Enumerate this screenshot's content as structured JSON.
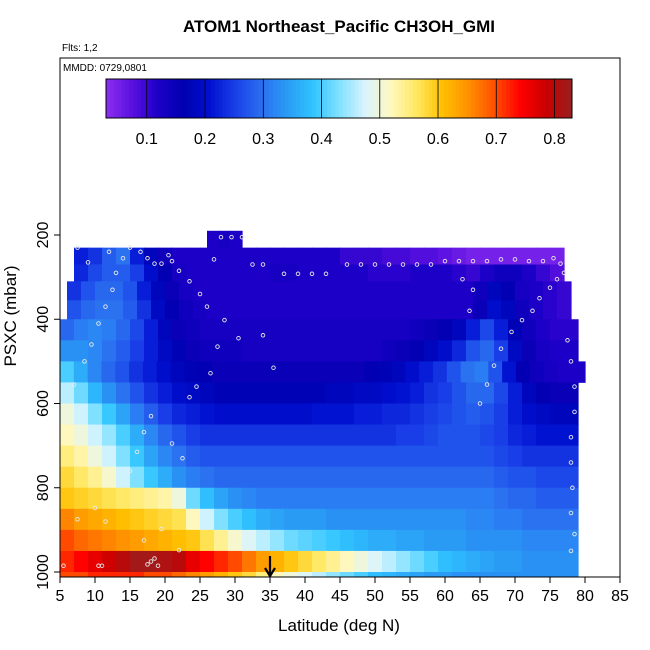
{
  "chart_data": {
    "type": "heatmap",
    "title": "ATOM1 Northeast_Pacific CH3OH_GMI",
    "flights_label": "Flts: 1,2",
    "date_label": "MMDD: 0729,0801",
    "xlabel": "Latitude (deg N)",
    "ylabel": "PSXC (mbar)",
    "xlim": [
      5,
      85
    ],
    "ylim": [
      1000,
      0
    ],
    "xticks": [
      5,
      10,
      15,
      20,
      25,
      30,
      35,
      40,
      45,
      50,
      55,
      60,
      65,
      70,
      75,
      80,
      85
    ],
    "yticks": [
      200,
      400,
      600,
      800,
      1000
    ],
    "colorbar": {
      "range": [
        0.03,
        0.83
      ],
      "ticks": [
        0.1,
        0.2,
        0.3,
        0.4,
        0.5,
        0.6,
        0.7,
        0.8
      ],
      "colors": [
        "#8c2ff0",
        "#5a10e0",
        "#1d00c8",
        "#0000b0",
        "#0010d0",
        "#1a40e8",
        "#2a6ff0",
        "#2a9cf5",
        "#30c4ff",
        "#80e0ff",
        "#d8f4ff",
        "#fff8c0",
        "#ffe860",
        "#ffc000",
        "#ff9000",
        "#ff5000",
        "#ff0000",
        "#c80000",
        "#982020"
      ]
    },
    "grid": false,
    "marker": {
      "latitude": 35,
      "label": "arrow"
    },
    "latitude_bins": [
      5,
      7,
      9,
      11,
      13,
      15,
      17,
      19,
      21,
      23,
      25,
      27,
      29,
      31,
      33,
      35,
      37,
      39,
      41,
      43,
      45,
      47,
      49,
      51,
      53,
      55,
      57,
      59,
      61,
      63,
      65,
      67,
      69,
      71,
      73,
      75,
      77,
      79
    ],
    "pressure_levels": [
      {
        "top": 190,
        "bottom": 230,
        "lat_range": [
          26,
          31
        ],
        "values": [
          0.12,
          0.13,
          0.12
        ]
      },
      {
        "top": 230,
        "bottom": 270,
        "lat_range": [
          7,
          77
        ],
        "values": [
          0.22,
          0.24,
          0.28,
          0.3,
          0.22,
          0.18,
          0.14,
          0.12,
          0.12,
          0.12,
          0.12,
          0.12,
          0.12,
          0.12,
          0.12,
          0.12,
          0.12,
          0.12,
          0.12,
          0.1,
          0.1,
          0.1,
          0.09,
          0.09,
          0.08,
          0.08,
          0.07,
          0.06,
          0.05,
          0.05,
          0.05,
          0.05,
          0.05,
          0.05,
          0.05
        ]
      },
      {
        "top": 270,
        "bottom": 310,
        "lat_range": [
          7,
          77
        ],
        "values": [
          0.23,
          0.26,
          0.28,
          0.28,
          0.25,
          0.2,
          0.16,
          0.13,
          0.12,
          0.12,
          0.12,
          0.12,
          0.12,
          0.12,
          0.13,
          0.13,
          0.12,
          0.12,
          0.12,
          0.12,
          0.12,
          0.11,
          0.11,
          0.11,
          0.12,
          0.12,
          0.12,
          0.11,
          0.1,
          0.12,
          0.14,
          0.14,
          0.12,
          0.1,
          0.08
        ]
      },
      {
        "top": 310,
        "bottom": 355,
        "lat_range": [
          6,
          78
        ],
        "values": [
          0.24,
          0.27,
          0.29,
          0.29,
          0.27,
          0.22,
          0.18,
          0.15,
          0.13,
          0.12,
          0.12,
          0.12,
          0.12,
          0.12,
          0.12,
          0.12,
          0.12,
          0.12,
          0.12,
          0.12,
          0.12,
          0.12,
          0.12,
          0.12,
          0.12,
          0.12,
          0.12,
          0.12,
          0.12,
          0.14,
          0.18,
          0.16,
          0.13,
          0.12,
          0.11,
          0.1
        ]
      },
      {
        "top": 355,
        "bottom": 400,
        "lat_range": [
          6,
          78
        ],
        "values": [
          0.27,
          0.29,
          0.3,
          0.3,
          0.28,
          0.24,
          0.19,
          0.16,
          0.14,
          0.13,
          0.12,
          0.12,
          0.12,
          0.12,
          0.12,
          0.12,
          0.12,
          0.12,
          0.12,
          0.12,
          0.12,
          0.12,
          0.12,
          0.12,
          0.12,
          0.12,
          0.12,
          0.12,
          0.12,
          0.15,
          0.2,
          0.18,
          0.14,
          0.12,
          0.11,
          0.1
        ]
      },
      {
        "top": 400,
        "bottom": 450,
        "lat_range": [
          5,
          79
        ],
        "values": [
          0.29,
          0.31,
          0.32,
          0.31,
          0.29,
          0.26,
          0.22,
          0.18,
          0.15,
          0.14,
          0.13,
          0.13,
          0.13,
          0.13,
          0.13,
          0.13,
          0.13,
          0.13,
          0.13,
          0.13,
          0.13,
          0.13,
          0.13,
          0.13,
          0.13,
          0.14,
          0.15,
          0.16,
          0.18,
          0.22,
          0.26,
          0.22,
          0.17,
          0.14,
          0.12,
          0.11,
          0.11
        ]
      },
      {
        "top": 450,
        "bottom": 500,
        "lat_range": [
          5,
          79
        ],
        "values": [
          0.33,
          0.33,
          0.32,
          0.3,
          0.28,
          0.25,
          0.22,
          0.19,
          0.17,
          0.15,
          0.14,
          0.14,
          0.14,
          0.13,
          0.13,
          0.13,
          0.13,
          0.13,
          0.13,
          0.13,
          0.13,
          0.13,
          0.13,
          0.14,
          0.15,
          0.16,
          0.18,
          0.2,
          0.23,
          0.27,
          0.29,
          0.25,
          0.19,
          0.15,
          0.13,
          0.12,
          0.12
        ]
      },
      {
        "top": 500,
        "bottom": 550,
        "lat_range": [
          5,
          80
        ],
        "values": [
          0.4,
          0.36,
          0.32,
          0.29,
          0.27,
          0.24,
          0.22,
          0.2,
          0.18,
          0.17,
          0.16,
          0.15,
          0.15,
          0.15,
          0.15,
          0.15,
          0.15,
          0.15,
          0.15,
          0.15,
          0.15,
          0.15,
          0.16,
          0.17,
          0.18,
          0.2,
          0.22,
          0.24,
          0.27,
          0.3,
          0.31,
          0.27,
          0.21,
          0.16,
          0.14,
          0.13,
          0.12,
          0.12
        ]
      },
      {
        "top": 550,
        "bottom": 600,
        "lat_range": [
          5,
          79
        ],
        "values": [
          0.46,
          0.42,
          0.37,
          0.33,
          0.3,
          0.27,
          0.24,
          0.22,
          0.2,
          0.19,
          0.18,
          0.17,
          0.17,
          0.17,
          0.17,
          0.17,
          0.17,
          0.17,
          0.17,
          0.18,
          0.18,
          0.19,
          0.19,
          0.2,
          0.21,
          0.22,
          0.24,
          0.25,
          0.27,
          0.29,
          0.29,
          0.26,
          0.22,
          0.18,
          0.16,
          0.15,
          0.15
        ]
      },
      {
        "top": 600,
        "bottom": 650,
        "lat_range": [
          5,
          79
        ],
        "values": [
          0.5,
          0.47,
          0.43,
          0.39,
          0.35,
          0.31,
          0.28,
          0.25,
          0.23,
          0.22,
          0.21,
          0.2,
          0.2,
          0.2,
          0.2,
          0.2,
          0.2,
          0.2,
          0.21,
          0.21,
          0.21,
          0.22,
          0.22,
          0.23,
          0.23,
          0.24,
          0.25,
          0.26,
          0.27,
          0.28,
          0.27,
          0.25,
          0.22,
          0.2,
          0.19,
          0.18,
          0.18
        ]
      },
      {
        "top": 650,
        "bottom": 700,
        "lat_range": [
          5,
          79
        ],
        "values": [
          0.52,
          0.5,
          0.47,
          0.44,
          0.4,
          0.36,
          0.32,
          0.29,
          0.27,
          0.25,
          0.24,
          0.24,
          0.24,
          0.24,
          0.24,
          0.24,
          0.24,
          0.24,
          0.24,
          0.24,
          0.24,
          0.24,
          0.24,
          0.24,
          0.25,
          0.25,
          0.26,
          0.27,
          0.27,
          0.27,
          0.26,
          0.25,
          0.23,
          0.22,
          0.21,
          0.21,
          0.21
        ]
      },
      {
        "top": 700,
        "bottom": 750,
        "lat_range": [
          5,
          79
        ],
        "values": [
          0.55,
          0.53,
          0.5,
          0.47,
          0.43,
          0.39,
          0.35,
          0.32,
          0.3,
          0.28,
          0.27,
          0.27,
          0.27,
          0.27,
          0.27,
          0.27,
          0.27,
          0.27,
          0.27,
          0.27,
          0.27,
          0.27,
          0.27,
          0.27,
          0.27,
          0.27,
          0.27,
          0.27,
          0.27,
          0.27,
          0.27,
          0.26,
          0.25,
          0.24,
          0.24,
          0.24,
          0.24
        ]
      },
      {
        "top": 750,
        "bottom": 800,
        "lat_range": [
          5,
          79
        ],
        "values": [
          0.58,
          0.56,
          0.54,
          0.51,
          0.47,
          0.43,
          0.39,
          0.36,
          0.33,
          0.31,
          0.3,
          0.29,
          0.29,
          0.29,
          0.29,
          0.29,
          0.29,
          0.29,
          0.29,
          0.29,
          0.29,
          0.29,
          0.29,
          0.29,
          0.29,
          0.29,
          0.29,
          0.29,
          0.29,
          0.29,
          0.29,
          0.28,
          0.27,
          0.27,
          0.26,
          0.26,
          0.26
        ]
      },
      {
        "top": 800,
        "bottom": 850,
        "lat_range": [
          5,
          79
        ],
        "values": [
          0.6,
          0.59,
          0.58,
          0.57,
          0.56,
          0.55,
          0.54,
          0.53,
          0.5,
          0.42,
          0.38,
          0.35,
          0.33,
          0.32,
          0.31,
          0.31,
          0.31,
          0.31,
          0.31,
          0.31,
          0.31,
          0.31,
          0.31,
          0.31,
          0.31,
          0.31,
          0.31,
          0.31,
          0.31,
          0.31,
          0.31,
          0.3,
          0.29,
          0.29,
          0.28,
          0.28,
          0.28
        ]
      },
      {
        "top": 850,
        "bottom": 900,
        "lat_range": [
          5,
          79
        ],
        "values": [
          0.66,
          0.64,
          0.63,
          0.62,
          0.61,
          0.6,
          0.59,
          0.58,
          0.57,
          0.52,
          0.47,
          0.43,
          0.4,
          0.38,
          0.36,
          0.35,
          0.34,
          0.34,
          0.34,
          0.33,
          0.33,
          0.33,
          0.33,
          0.33,
          0.33,
          0.33,
          0.33,
          0.33,
          0.33,
          0.32,
          0.32,
          0.31,
          0.31,
          0.3,
          0.3,
          0.3,
          0.3
        ]
      },
      {
        "top": 900,
        "bottom": 950,
        "lat_range": [
          5,
          79
        ],
        "values": [
          0.7,
          0.68,
          0.67,
          0.66,
          0.65,
          0.64,
          0.63,
          0.62,
          0.61,
          0.6,
          0.57,
          0.54,
          0.51,
          0.48,
          0.46,
          0.44,
          0.42,
          0.41,
          0.4,
          0.39,
          0.38,
          0.37,
          0.36,
          0.36,
          0.35,
          0.35,
          0.34,
          0.34,
          0.34,
          0.33,
          0.33,
          0.33,
          0.33,
          0.32,
          0.32,
          0.32,
          0.32
        ]
      },
      {
        "top": 950,
        "bottom": 1000,
        "lat_range": [
          5,
          79
        ],
        "values": [
          0.72,
          0.74,
          0.76,
          0.78,
          0.8,
          0.82,
          0.82,
          0.81,
          0.8,
          0.76,
          0.74,
          0.72,
          0.7,
          0.67,
          0.64,
          0.62,
          0.6,
          0.58,
          0.56,
          0.54,
          0.52,
          0.5,
          0.48,
          0.46,
          0.44,
          0.42,
          0.4,
          0.38,
          0.37,
          0.36,
          0.35,
          0.34,
          0.34,
          0.33,
          0.33,
          0.33,
          0.33
        ]
      },
      {
        "top": 1000,
        "bottom": 1010,
        "lat_range": [
          5,
          79
        ],
        "values": [
          0.7,
          0.7,
          0.72,
          0.72,
          0.72,
          0.72,
          0.7,
          0.7,
          0.68,
          0.66,
          0.64,
          0.62,
          0.6,
          0.58,
          0.55,
          0.52,
          0.5,
          0.48,
          0.46,
          0.44,
          0.42,
          0.4,
          0.38,
          0.37,
          0.36,
          0.35,
          0.34,
          0.34,
          0.33,
          0.33,
          0.33,
          0.33,
          0.33,
          0.33,
          0.33,
          0.33,
          0.33
        ]
      }
    ],
    "flight_points": [
      {
        "lat": 17.5,
        "p": 982
      },
      {
        "lat": 18.0,
        "p": 975
      },
      {
        "lat": 18.5,
        "p": 968
      },
      {
        "lat": 19.0,
        "p": 985
      },
      {
        "lat": 10.5,
        "p": 985
      },
      {
        "lat": 11.0,
        "p": 985
      },
      {
        "lat": 5.5,
        "p": 985
      },
      {
        "lat": 17.0,
        "p": 925
      },
      {
        "lat": 19.5,
        "p": 898
      },
      {
        "lat": 22.0,
        "p": 948
      },
      {
        "lat": 7.5,
        "p": 875
      },
      {
        "lat": 10.0,
        "p": 848
      },
      {
        "lat": 11.5,
        "p": 880
      },
      {
        "lat": 15.0,
        "p": 760
      },
      {
        "lat": 16.0,
        "p": 715
      },
      {
        "lat": 17.0,
        "p": 668
      },
      {
        "lat": 18.0,
        "p": 630
      },
      {
        "lat": 21.0,
        "p": 695
      },
      {
        "lat": 22.5,
        "p": 730
      },
      {
        "lat": 23.5,
        "p": 585
      },
      {
        "lat": 24.5,
        "p": 560
      },
      {
        "lat": 26.5,
        "p": 528
      },
      {
        "lat": 27.5,
        "p": 465
      },
      {
        "lat": 30.5,
        "p": 445
      },
      {
        "lat": 34.0,
        "p": 438
      },
      {
        "lat": 35.5,
        "p": 515
      },
      {
        "lat": 28.5,
        "p": 402
      },
      {
        "lat": 26.0,
        "p": 370
      },
      {
        "lat": 25.0,
        "p": 340
      },
      {
        "lat": 23.5,
        "p": 310
      },
      {
        "lat": 22.0,
        "p": 285
      },
      {
        "lat": 21.0,
        "p": 262
      },
      {
        "lat": 20.5,
        "p": 248
      },
      {
        "lat": 19.5,
        "p": 268
      },
      {
        "lat": 18.5,
        "p": 268
      },
      {
        "lat": 17.5,
        "p": 255
      },
      {
        "lat": 16.5,
        "p": 240
      },
      {
        "lat": 15.0,
        "p": 230
      },
      {
        "lat": 14.0,
        "p": 255
      },
      {
        "lat": 13.0,
        "p": 290
      },
      {
        "lat": 12.5,
        "p": 330
      },
      {
        "lat": 11.5,
        "p": 370
      },
      {
        "lat": 10.5,
        "p": 410
      },
      {
        "lat": 9.5,
        "p": 460
      },
      {
        "lat": 8.5,
        "p": 500
      },
      {
        "lat": 7.0,
        "p": 555
      },
      {
        "lat": 28.0,
        "p": 205
      },
      {
        "lat": 29.5,
        "p": 205
      },
      {
        "lat": 31.0,
        "p": 205
      },
      {
        "lat": 27.0,
        "p": 258
      },
      {
        "lat": 32.5,
        "p": 270
      },
      {
        "lat": 34.0,
        "p": 270
      },
      {
        "lat": 37.0,
        "p": 292
      },
      {
        "lat": 39.0,
        "p": 292
      },
      {
        "lat": 41.0,
        "p": 292
      },
      {
        "lat": 43.0,
        "p": 292
      },
      {
        "lat": 46.0,
        "p": 270
      },
      {
        "lat": 48.0,
        "p": 270
      },
      {
        "lat": 50.0,
        "p": 270
      },
      {
        "lat": 52.0,
        "p": 270
      },
      {
        "lat": 54.0,
        "p": 270
      },
      {
        "lat": 56.0,
        "p": 270
      },
      {
        "lat": 58.0,
        "p": 270
      },
      {
        "lat": 60.0,
        "p": 262
      },
      {
        "lat": 62.0,
        "p": 262
      },
      {
        "lat": 64.0,
        "p": 262
      },
      {
        "lat": 66.0,
        "p": 262
      },
      {
        "lat": 68.0,
        "p": 258
      },
      {
        "lat": 70.0,
        "p": 258
      },
      {
        "lat": 72.0,
        "p": 262
      },
      {
        "lat": 74.0,
        "p": 262
      },
      {
        "lat": 75.5,
        "p": 255
      },
      {
        "lat": 76.5,
        "p": 268
      },
      {
        "lat": 77.0,
        "p": 290
      },
      {
        "lat": 76.0,
        "p": 305
      },
      {
        "lat": 75.0,
        "p": 325
      },
      {
        "lat": 73.5,
        "p": 350
      },
      {
        "lat": 72.5,
        "p": 380
      },
      {
        "lat": 71.0,
        "p": 402
      },
      {
        "lat": 69.5,
        "p": 430
      },
      {
        "lat": 68.0,
        "p": 470
      },
      {
        "lat": 67.0,
        "p": 510
      },
      {
        "lat": 66.0,
        "p": 555
      },
      {
        "lat": 65.0,
        "p": 600
      },
      {
        "lat": 64.0,
        "p": 330
      },
      {
        "lat": 63.5,
        "p": 380
      },
      {
        "lat": 62.5,
        "p": 305
      },
      {
        "lat": 77.5,
        "p": 450
      },
      {
        "lat": 78.0,
        "p": 500
      },
      {
        "lat": 78.5,
        "p": 560
      },
      {
        "lat": 78.5,
        "p": 620
      },
      {
        "lat": 78.0,
        "p": 680
      },
      {
        "lat": 78.0,
        "p": 740
      },
      {
        "lat": 78.2,
        "p": 800
      },
      {
        "lat": 78.0,
        "p": 860
      },
      {
        "lat": 78.5,
        "p": 910
      },
      {
        "lat": 78.0,
        "p": 950
      },
      {
        "lat": 12.0,
        "p": 240
      },
      {
        "lat": 9.0,
        "p": 265
      },
      {
        "lat": 7.5,
        "p": 230
      }
    ]
  }
}
